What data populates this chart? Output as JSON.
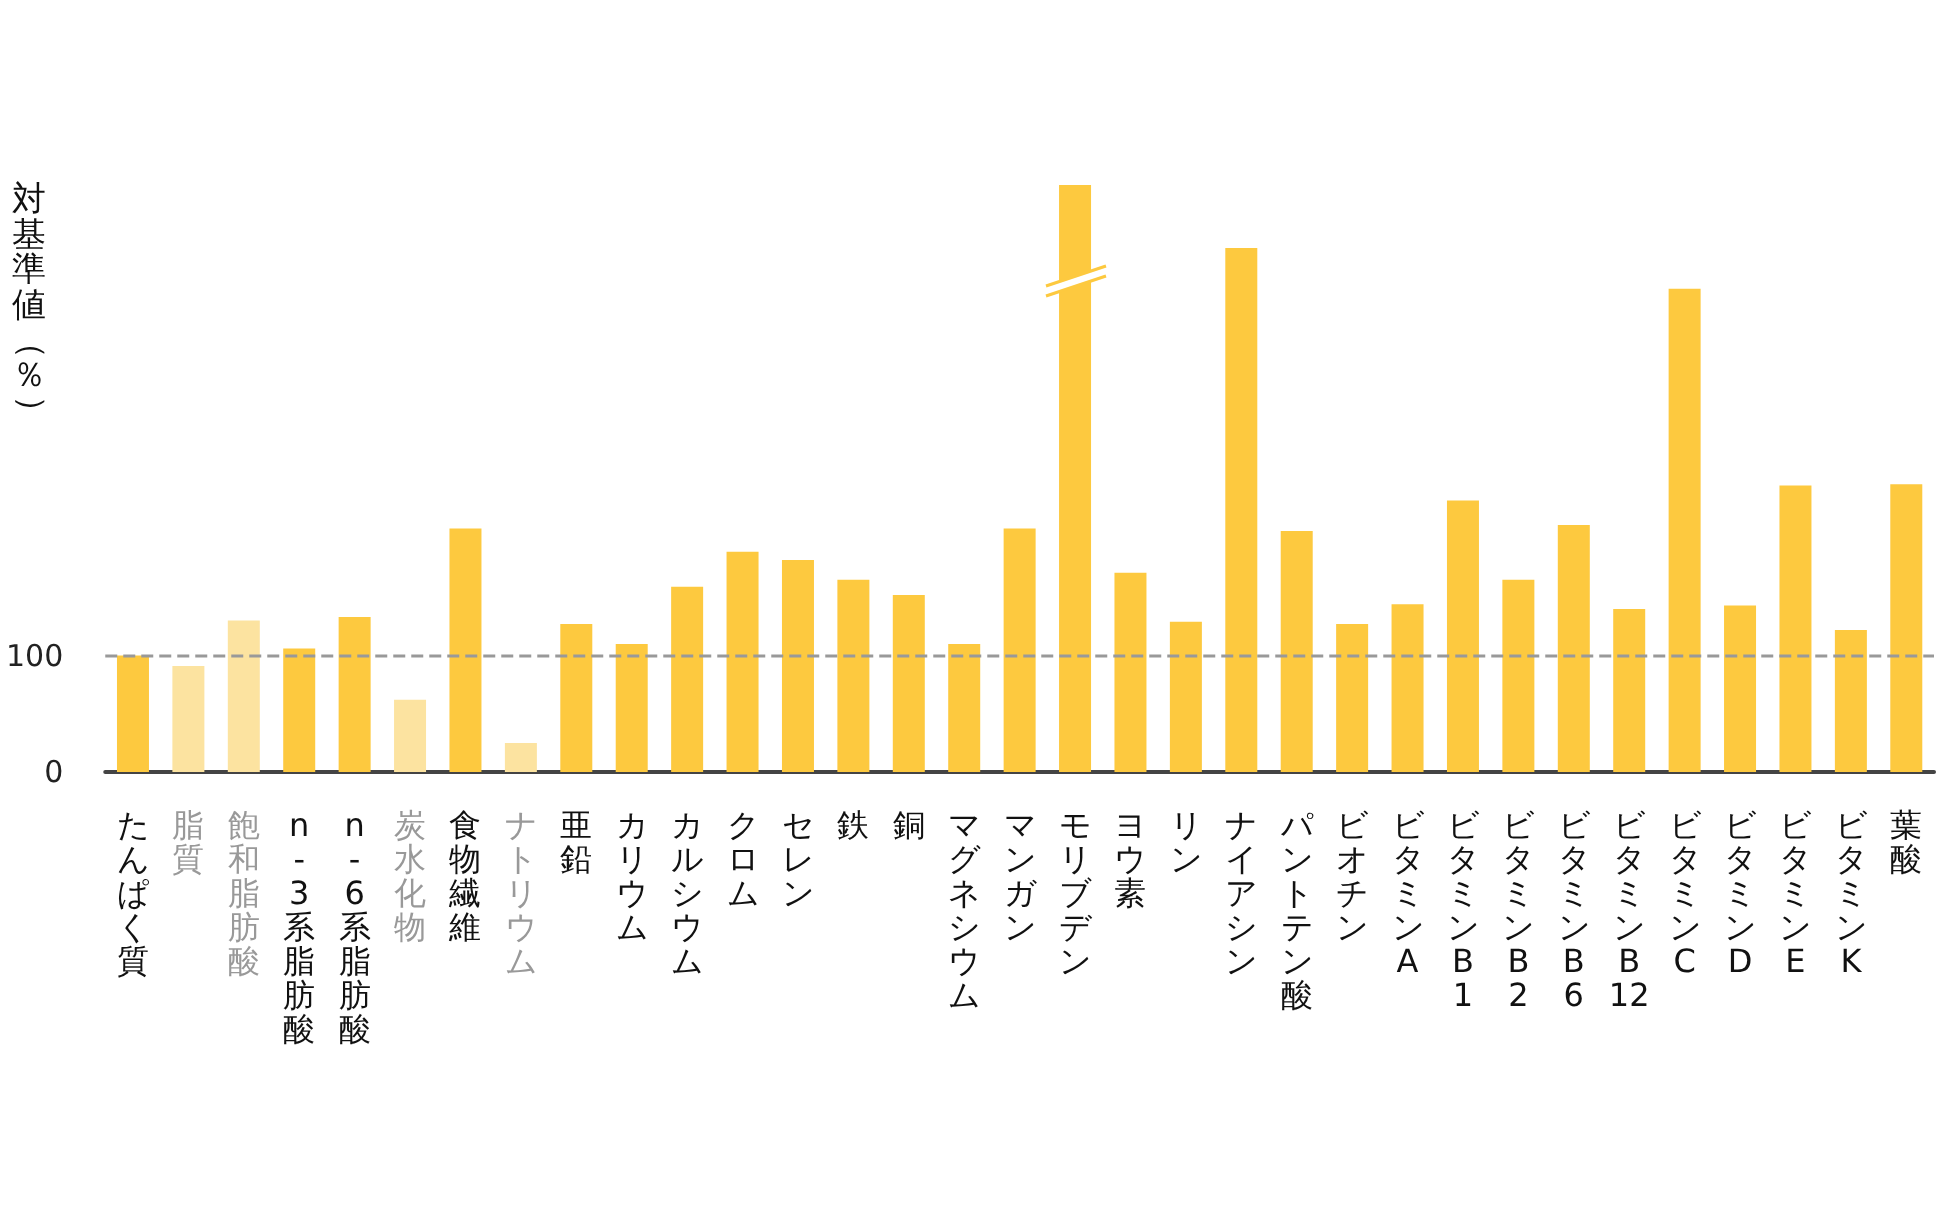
{
  "chart_data": {
    "type": "bar",
    "ylabel": "対基準値（％）",
    "categories": [
      "たんぱく質",
      "脂質",
      "飽和脂肪酸",
      "n-3系脂肪酸",
      "n-6系脂肪酸",
      "炭水化物",
      "食物繊維",
      "ナトリウム",
      "亜鉛",
      "カリウム",
      "カルシウム",
      "クロム",
      "セレン",
      "鉄",
      "銅",
      "マグネシウム",
      "マンガン",
      "モリブデン",
      "ヨウ素",
      "リン",
      "ナイアシン",
      "パントテン酸",
      "ビオチン",
      "ビタミンA",
      "ビタミンB1",
      "ビタミンB2",
      "ビタミンB6",
      "ビタミンB12",
      "ビタミンC",
      "ビタミンD",
      "ビタミンE",
      "ビタミンK",
      "葉酸"
    ],
    "values": [
      100,
      91,
      130,
      106,
      133,
      62,
      209,
      25,
      127,
      110,
      159,
      189,
      182,
      165,
      152,
      110,
      209,
      504,
      171,
      129,
      450,
      207,
      127,
      144,
      233,
      165,
      212,
      140,
      415,
      143,
      246,
      122,
      247
    ],
    "colors": [
      "#fdc93f",
      "#fce3a0",
      "#fce3a0",
      "#fdc93f",
      "#fdc93f",
      "#fce3a0",
      "#fdc93f",
      "#fce3a0",
      "#fdc93f",
      "#fdc93f",
      "#fdc93f",
      "#fdc93f",
      "#fdc93f",
      "#fdc93f",
      "#fdc93f",
      "#fdc93f",
      "#fdc93f",
      "#fdc93f",
      "#fdc93f",
      "#fdc93f",
      "#fdc93f",
      "#fdc93f",
      "#fdc93f",
      "#fdc93f",
      "#fdc93f",
      "#fdc93f",
      "#fdc93f",
      "#fdc93f",
      "#fdc93f",
      "#fdc93f",
      "#fdc93f",
      "#fdc93f",
      "#fdc93f"
    ],
    "ylim": [
      0,
      510
    ],
    "yticks": [
      0,
      100
    ],
    "ref_lines": [
      {
        "axis": "y",
        "value": 100,
        "color": "#999999",
        "line_style": "dashed"
      }
    ]
  }
}
